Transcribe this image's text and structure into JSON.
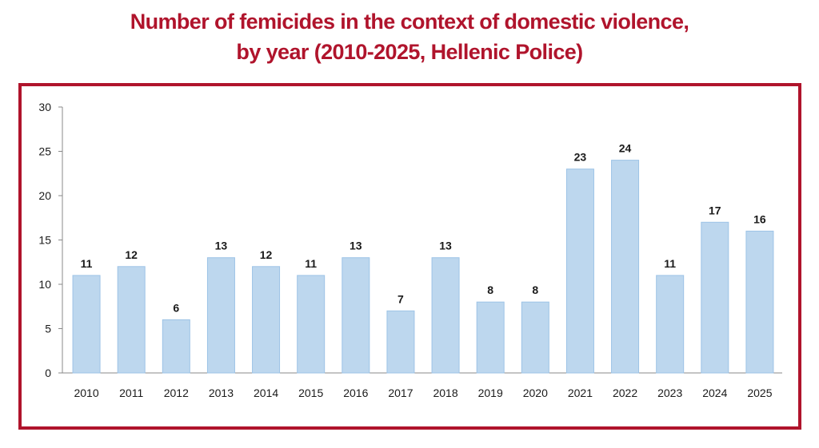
{
  "title_line1": "Number of femicides in the context of domestic violence,",
  "title_line2": "by year (2010-2025, Hellenic Police)",
  "colors": {
    "title": "#b0142c",
    "frame": "#b0142c",
    "bar_fill": "#bdd7ee",
    "bar_stroke": "#9dc3e6",
    "axis": "#888888"
  },
  "chart_data": {
    "type": "bar",
    "title": "Number of femicides in the context of domestic violence, by year (2010-2025, Hellenic Police)",
    "categories": [
      "2010",
      "2011",
      "2012",
      "2013",
      "2014",
      "2015",
      "2016",
      "2017",
      "2018",
      "2019",
      "2020",
      "2021",
      "2022",
      "2023",
      "2024",
      "2025"
    ],
    "values": [
      11,
      12,
      6,
      13,
      12,
      11,
      13,
      7,
      13,
      8,
      8,
      23,
      24,
      11,
      17,
      16
    ],
    "xlabel": "",
    "ylabel": "",
    "ylim": [
      0,
      30
    ],
    "yticks": [
      0,
      5,
      10,
      15,
      20,
      25,
      30
    ],
    "grid": false,
    "legend": "none",
    "data_labels": true
  }
}
